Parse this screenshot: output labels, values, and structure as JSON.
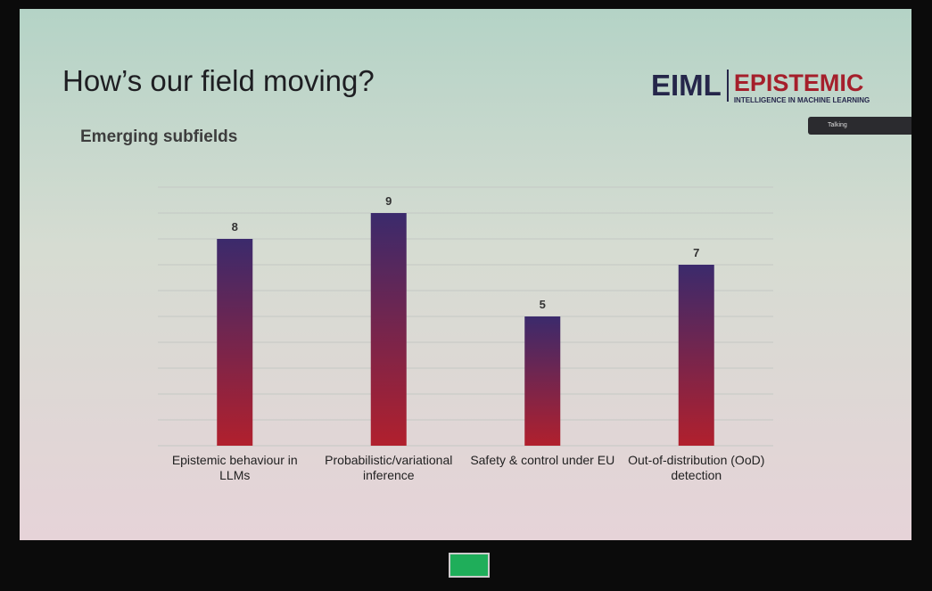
{
  "title": "How’s our field moving?",
  "logo": {
    "left": "EIML",
    "right": "EPISTEMIC",
    "tagline": "INTELLIGENCE IN MACHINE LEARNING"
  },
  "popup": "Talking",
  "chart_data": {
    "type": "bar",
    "title": "Emerging subfields",
    "categories": [
      "Epistemic behaviour in LLMs",
      "Probabilistic/variational inference",
      "Safety & control under EU",
      "Out-of-distribution (OoD) detection"
    ],
    "values": [
      8,
      9,
      5,
      7
    ],
    "gradient": [
      "#3b2a6c",
      "#b1202d"
    ],
    "ylim": [
      0,
      10
    ],
    "yticks": [
      0,
      1,
      2,
      3,
      4,
      5,
      6,
      7,
      8,
      9,
      10
    ],
    "grid": true
  }
}
